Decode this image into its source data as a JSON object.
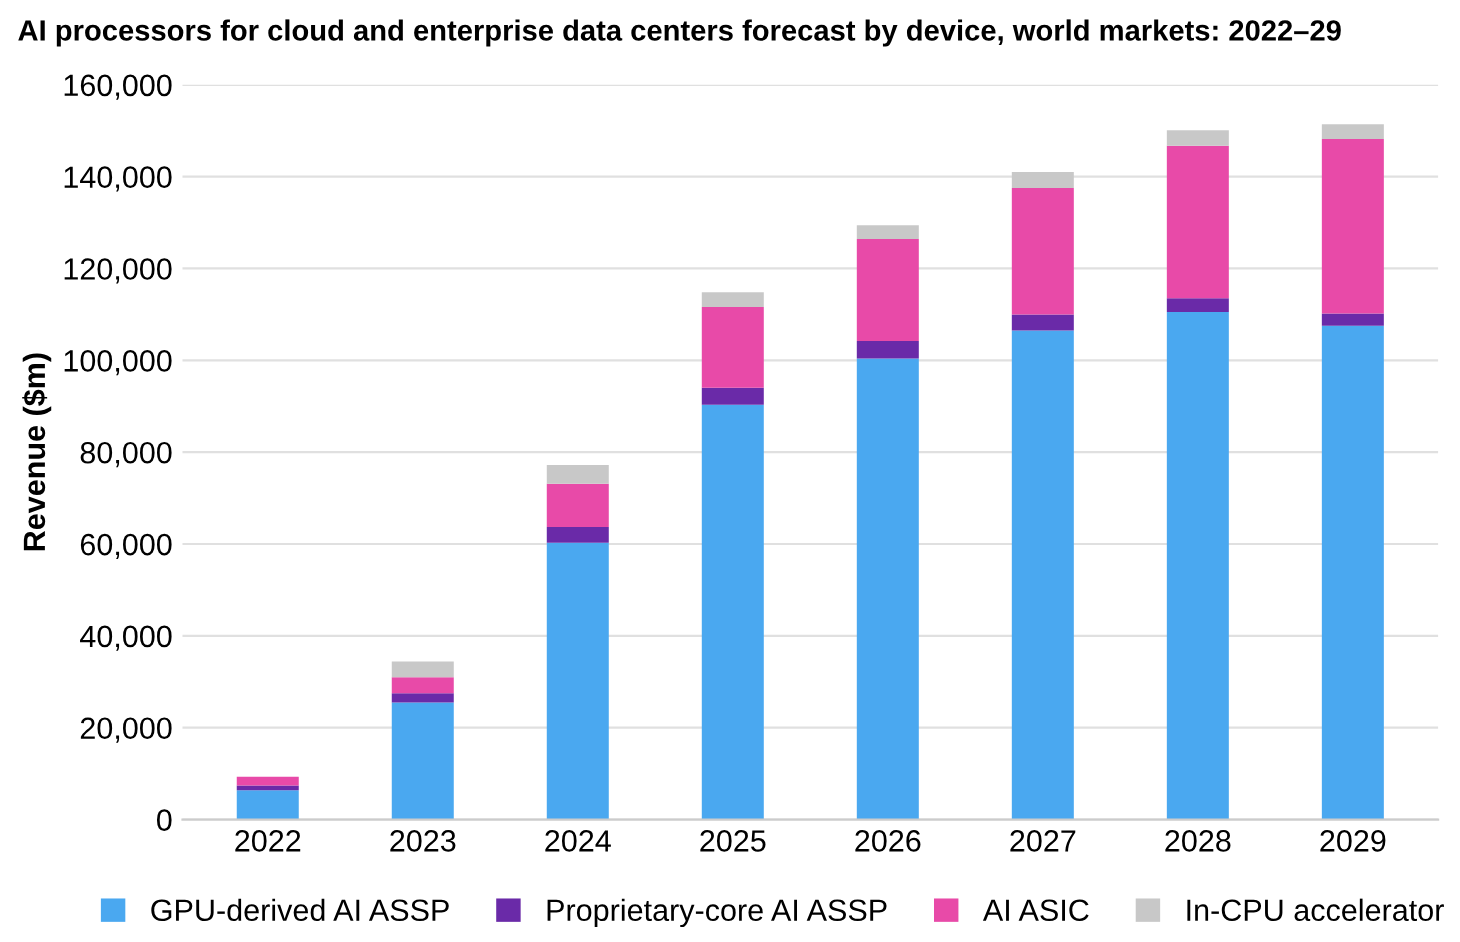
{
  "chart_data": {
    "type": "bar",
    "stacked": true,
    "title": "AI processors for cloud and enterprise data centers forecast by device, world markets: 2022–29",
    "ylabel": "Revenue ($m)",
    "categories": [
      "2022",
      "2023",
      "2024",
      "2025",
      "2026",
      "2027",
      "2028",
      "2029"
    ],
    "series": [
      {
        "name": "GPU-derived AI ASSP",
        "color": "#4aa8f0",
        "values": [
          6400,
          25500,
          60300,
          90300,
          100400,
          106500,
          110500,
          107500
        ]
      },
      {
        "name": "Proprietary-core AI ASSP",
        "color": "#6a2aa8",
        "values": [
          1000,
          2000,
          3400,
          3700,
          3800,
          3500,
          3000,
          2700
        ]
      },
      {
        "name": "AI ASIC",
        "color": "#e84aa8",
        "values": [
          1900,
          3500,
          9400,
          17600,
          22200,
          27500,
          33200,
          38000
        ]
      },
      {
        "name": "In-CPU accelerator",
        "color": "#c8c8c8",
        "values": [
          null,
          3400,
          4100,
          3200,
          3000,
          3500,
          3400,
          3200
        ]
      }
    ],
    "ylim": [
      0,
      160000
    ],
    "yticks": [
      {
        "value": 0,
        "label": "0"
      },
      {
        "value": 20000,
        "label": "20,000"
      },
      {
        "value": 40000,
        "label": "40,000"
      },
      {
        "value": 60000,
        "label": "60,000"
      },
      {
        "value": 80000,
        "label": "80,000"
      },
      {
        "value": 100000,
        "label": "100,000"
      },
      {
        "value": 120000,
        "label": "120,000"
      },
      {
        "value": 140000,
        "label": "140,000"
      },
      {
        "value": 160000,
        "label": "160,000"
      }
    ],
    "grid": "y",
    "legend": "bottom"
  }
}
